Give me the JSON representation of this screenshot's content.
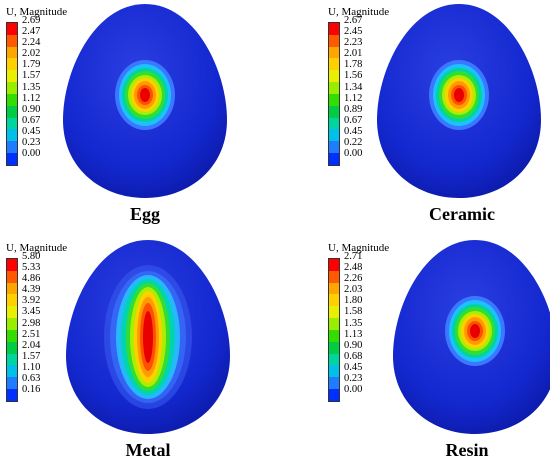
{
  "panels": [
    {
      "id": "egg",
      "caption": "Egg",
      "legend_title": "U, Magnitude",
      "legend_values": [
        "2.69",
        "2.47",
        "2.24",
        "2.02",
        "1.79",
        "1.57",
        "1.35",
        "1.12",
        "0.90",
        "0.67",
        "0.45",
        "0.23",
        "0.00"
      ],
      "hotspot": "round"
    },
    {
      "id": "ceramic",
      "caption": "Ceramic",
      "legend_title": "U, Magnitude",
      "legend_values": [
        "2.67",
        "2.45",
        "2.23",
        "2.01",
        "1.78",
        "1.56",
        "1.34",
        "1.12",
        "0.89",
        "0.67",
        "0.45",
        "0.22",
        "0.00"
      ],
      "hotspot": "round"
    },
    {
      "id": "metal",
      "caption": "Metal",
      "legend_title": "U, Magnitude",
      "legend_values": [
        "5.80",
        "5.33",
        "4.86",
        "4.39",
        "3.92",
        "3.45",
        "2.98",
        "2.51",
        "2.04",
        "1.57",
        "1.10",
        "0.63",
        "0.16"
      ],
      "hotspot": "elongated"
    },
    {
      "id": "resin",
      "caption": "Resin",
      "legend_title": "U, Magnitude",
      "legend_values": [
        "2.71",
        "2.48",
        "2.26",
        "2.03",
        "1.80",
        "1.58",
        "1.35",
        "1.13",
        "0.90",
        "0.68",
        "0.45",
        "0.23",
        "0.00"
      ],
      "hotspot": "round"
    }
  ],
  "colors": {
    "legend_bands": [
      "#ff0000",
      "#ff5a00",
      "#ffa500",
      "#ffd000",
      "#e6f000",
      "#99ee00",
      "#33dd00",
      "#00cc44",
      "#00d5a0",
      "#00bfe8",
      "#1e7cff",
      "#0030ff",
      "#0000e0"
    ],
    "body": "#1428d0"
  }
}
